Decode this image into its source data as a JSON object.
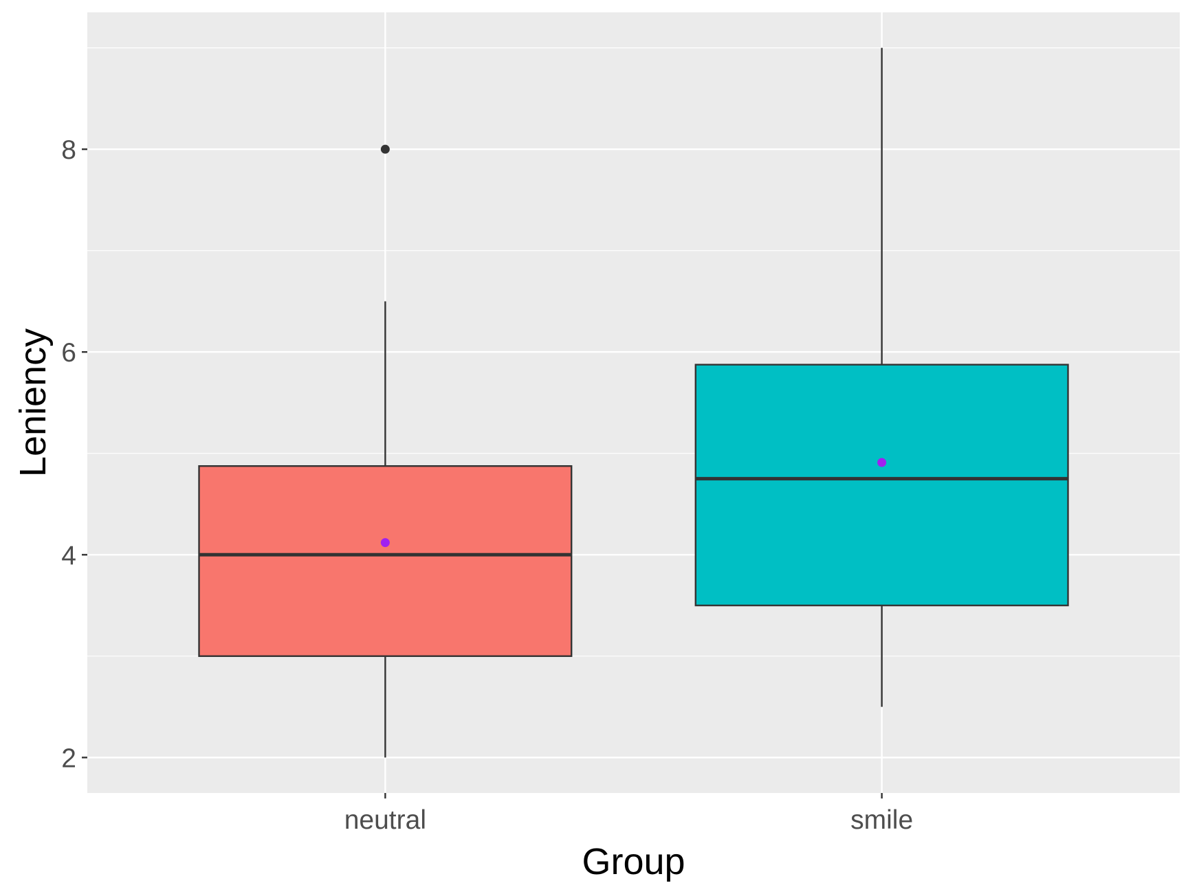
{
  "chart_data": {
    "type": "boxplot",
    "xlabel": "Group",
    "ylabel": "Leniency",
    "categories": [
      "neutral",
      "smile"
    ],
    "yticks": [
      "2",
      "4",
      "6",
      "8"
    ],
    "ylim": [
      1.65,
      9.35
    ],
    "grid": true,
    "legend": "none",
    "boxes": [
      {
        "category": "neutral",
        "whisker_low": 2.0,
        "q1": 3.0,
        "median": 4.0,
        "q3": 4.875,
        "whisker_high": 6.5,
        "mean": 4.12,
        "outliers": [
          8.0
        ],
        "fill": "#F8766D"
      },
      {
        "category": "smile",
        "whisker_low": 2.5,
        "q1": 3.5,
        "median": 4.75,
        "q3": 5.875,
        "whisker_high": 9.0,
        "mean": 4.91,
        "outliers": [],
        "fill": "#00BFC4"
      }
    ],
    "colors": {
      "panel": "#EBEBEB",
      "grid": "#FFFFFF",
      "box_line": "#333333",
      "mean_point": "#A020F0",
      "outlier": "#333333"
    }
  }
}
